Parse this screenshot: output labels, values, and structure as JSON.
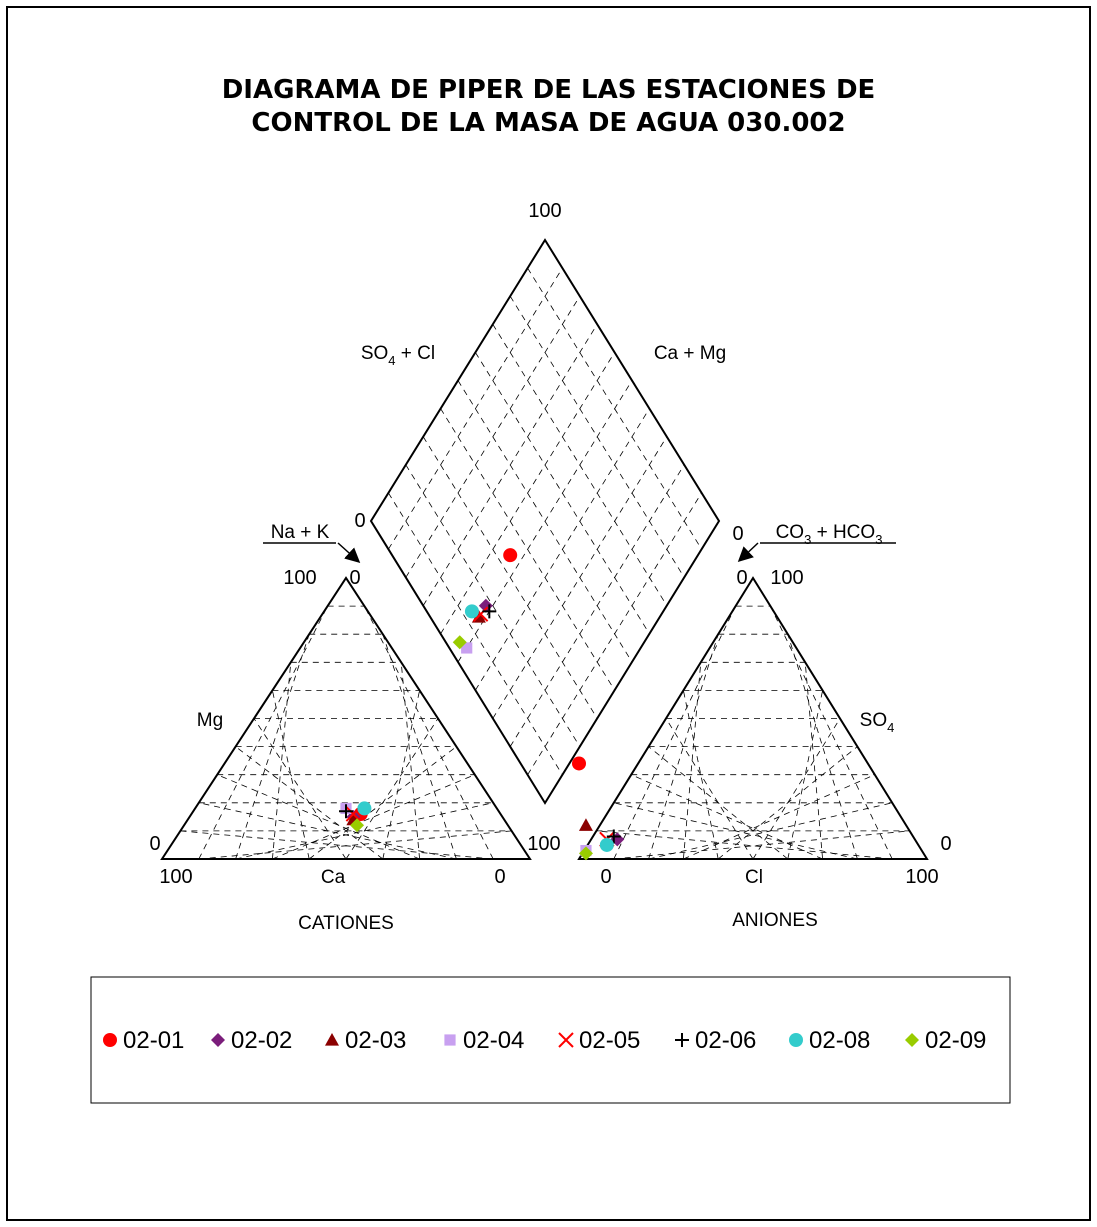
{
  "title_lines": [
    "DIAGRAMA DE PIPER DE LAS ESTACIONES DE",
    "CONTROL DE LA MASA DE AGUA 030.002"
  ],
  "chart_data": {
    "type": "scatter",
    "subtype": "piper-diagram",
    "panels": {
      "cations": {
        "label": "CATIONES",
        "axis_labels": {
          "left": "Mg",
          "bottom": "Ca",
          "arrow": "Na + K"
        },
        "ticks": {
          "top_left": "100",
          "top_right": "0",
          "left_bottom": "0",
          "bottom_left": "100",
          "bottom_right": "0"
        }
      },
      "anions": {
        "label": "ANIONES",
        "axis_labels": {
          "right": "SO4",
          "bottom": "Cl",
          "arrow": "CO3 + HCO3"
        },
        "ticks": {
          "top_left": "0",
          "top_right": "100",
          "left_bottom": "100",
          "right_bottom": "0",
          "bottom_left": "0",
          "bottom_right": "100"
        }
      },
      "diamond": {
        "axis_labels": {
          "upper_left": "SO4 + Cl",
          "upper_right": "Ca + Mg"
        },
        "ticks": {
          "top": "100",
          "left": "0",
          "right": "0"
        }
      }
    },
    "grid": true,
    "legend_position": "bottom",
    "series": [
      {
        "name": "02-01",
        "marker": "circle",
        "color": "#ff0000",
        "cations": {
          "Ca": 30,
          "Mg": 16,
          "NaK": 54
        },
        "anions": {
          "SO4": 34,
          "Cl": 0,
          "HCO3": 66
        },
        "diamond": {
          "SO4Cl": 34,
          "CaMg": 46
        }
      },
      {
        "name": "02-02",
        "marker": "diamond",
        "color": "#7b1d7b",
        "cations": {
          "Ca": 33,
          "Mg": 15,
          "NaK": 52
        },
        "anions": {
          "SO4": 7,
          "Cl": 11,
          "HCO3": 82
        },
        "diamond": {
          "SO4Cl": 18,
          "CaMg": 48
        }
      },
      {
        "name": "02-03",
        "marker": "triangle",
        "color": "#8b0000",
        "cations": {
          "Ca": 34,
          "Mg": 14,
          "NaK": 52
        },
        "anions": {
          "SO4": 12,
          "Cl": 2,
          "HCO3": 86
        },
        "diamond": {
          "SO4Cl": 14,
          "CaMg": 48
        }
      },
      {
        "name": "02-04",
        "marker": "square",
        "color": "#c8a0f0",
        "cations": {
          "Ca": 32,
          "Mg": 18,
          "NaK": 50
        },
        "anions": {
          "SO4": 3,
          "Cl": 2,
          "HCO3": 95
        },
        "diamond": {
          "SO4Cl": 5,
          "CaMg": 50
        }
      },
      {
        "name": "02-05",
        "marker": "x",
        "color": "#ff0000",
        "cations": {
          "Ca": 32,
          "Mg": 16,
          "NaK": 52
        },
        "anions": {
          "SO4": 7,
          "Cl": 8,
          "HCO3": 85
        },
        "diamond": {
          "SO4Cl": 15,
          "CaMg": 48
        }
      },
      {
        "name": "02-06",
        "marker": "plus",
        "color": "#000000",
        "cations": {
          "Ca": 33,
          "Mg": 17,
          "NaK": 50
        },
        "anions": {
          "SO4": 8,
          "Cl": 10,
          "HCO3": 82
        },
        "diamond": {
          "SO4Cl": 18,
          "CaMg": 50
        }
      },
      {
        "name": "02-08",
        "marker": "circle",
        "color": "#33cccc",
        "cations": {
          "Ca": 27,
          "Mg": 18,
          "NaK": 55
        },
        "anions": {
          "SO4": 5,
          "Cl": 8,
          "HCO3": 87
        },
        "diamond": {
          "SO4Cl": 13,
          "CaMg": 45
        }
      },
      {
        "name": "02-09",
        "marker": "diamond",
        "color": "#99cc00",
        "cations": {
          "Ca": 35,
          "Mg": 12,
          "NaK": 53
        },
        "anions": {
          "SO4": 2,
          "Cl": 2,
          "HCO3": 96
        },
        "diamond": {
          "SO4Cl": 4,
          "CaMg": 47
        }
      }
    ]
  }
}
